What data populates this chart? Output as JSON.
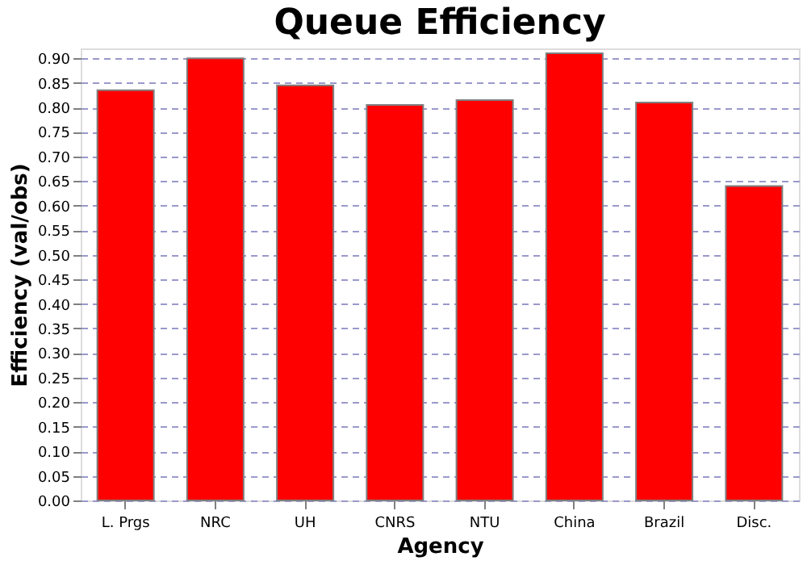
{
  "chart_data": {
    "type": "bar",
    "title": "Queue Efficiency",
    "xlabel": "Agency",
    "ylabel": "Efficiency (val/obs)",
    "categories": [
      "L. Prgs",
      "NRC",
      "UH",
      "CNRS",
      "NTU",
      "China",
      "Brazil",
      "Disc."
    ],
    "values": [
      0.835,
      0.9,
      0.845,
      0.805,
      0.815,
      0.91,
      0.81,
      0.64
    ],
    "color": "#ff0000",
    "ylim": [
      0,
      0.92
    ],
    "yticks": [
      {
        "value": 0,
        "label": "0.00"
      },
      0.05,
      {
        "value": 0.1,
        "label": "0.10"
      },
      0.15,
      {
        "value": 0.2,
        "label": "0.20"
      },
      0.25,
      {
        "value": 0.3,
        "label": "0.30"
      },
      0.35,
      {
        "value": 0.4,
        "label": "0.40"
      },
      0.45,
      {
        "value": 0.5,
        "label": "0.50"
      },
      0.55,
      {
        "value": 0.6,
        "label": "0.60"
      },
      0.65,
      {
        "value": 0.7,
        "label": "0.70"
      },
      0.75,
      {
        "value": 0.8,
        "label": "0.80"
      },
      0.85,
      {
        "value": 0.9,
        "label": "0.90"
      }
    ],
    "grid": "y"
  }
}
